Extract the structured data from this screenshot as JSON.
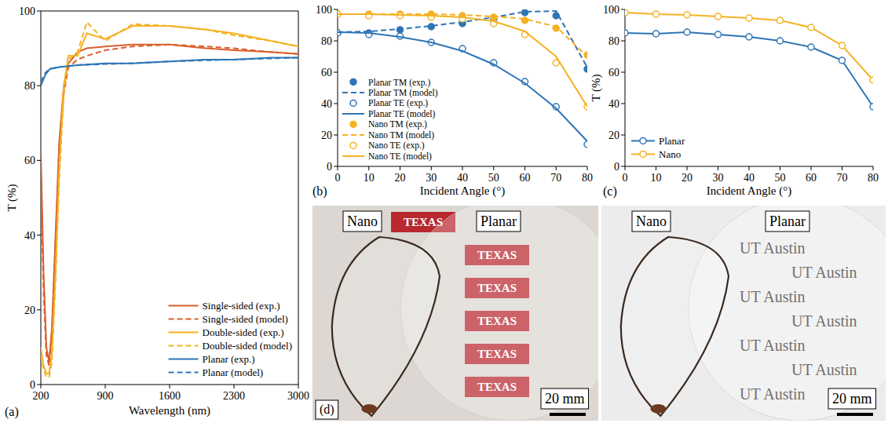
{
  "chart_data": [
    {
      "type": "line",
      "panel_label": "(a)",
      "x_label": "Wavelength (nm)",
      "y_label": "T (%)",
      "xlim": [
        200,
        3000
      ],
      "xticks": [
        200,
        900,
        1600,
        2300,
        3000
      ],
      "ylim": [
        0,
        100
      ],
      "yticks": [
        0,
        20,
        40,
        60,
        80,
        100
      ],
      "legend": "lower right",
      "series": [
        {
          "name": "Single-sided (exp.)",
          "color": "#d95f2b",
          "line_style": "solid",
          "x": [
            200,
            230,
            260,
            290,
            320,
            360,
            400,
            450,
            500,
            600,
            700,
            900,
            1200,
            1600,
            2000,
            2300,
            2700,
            3000
          ],
          "values": [
            62,
            30,
            10,
            6,
            15,
            40,
            65,
            80,
            86,
            89,
            90,
            90.5,
            91,
            91,
            90,
            89.5,
            89,
            88.5
          ]
        },
        {
          "name": "Single-sided (model)",
          "color": "#d95f2b",
          "line_style": "dashed",
          "x": [
            200,
            230,
            260,
            290,
            320,
            360,
            400,
            450,
            500,
            600,
            700,
            900,
            1200,
            1600,
            2000,
            2300,
            2700,
            3000
          ],
          "values": [
            55,
            25,
            8,
            5,
            12,
            38,
            62,
            78,
            85,
            87,
            88,
            89.5,
            90.5,
            91,
            90.5,
            90,
            89,
            88.5
          ]
        },
        {
          "name": "Double-sided (exp.)",
          "color": "#f4b223",
          "line_style": "solid",
          "x": [
            200,
            230,
            260,
            290,
            320,
            360,
            400,
            450,
            500,
            600,
            700,
            900,
            1200,
            1600,
            2000,
            2300,
            2700,
            3000
          ],
          "values": [
            10,
            5,
            3,
            3,
            8,
            30,
            58,
            80,
            88,
            88,
            94,
            92.5,
            96,
            96,
            95,
            94,
            92,
            90.5
          ]
        },
        {
          "name": "Double-sided (model)",
          "color": "#f4b223",
          "line_style": "dashed",
          "x": [
            200,
            230,
            260,
            290,
            320,
            360,
            400,
            450,
            500,
            600,
            700,
            900,
            1200,
            1600,
            2000,
            2300,
            2700,
            3000
          ],
          "values": [
            8,
            4,
            2,
            2,
            6,
            28,
            55,
            78,
            87,
            89,
            97,
            92,
            96.5,
            96,
            95,
            93.5,
            92,
            90.5
          ]
        },
        {
          "name": "Planar (exp.)",
          "color": "#2e75b6",
          "line_style": "solid",
          "x": [
            200,
            250,
            300,
            400,
            600,
            900,
            1200,
            1600,
            2000,
            2300,
            2700,
            3000
          ],
          "values": [
            80,
            83,
            84.5,
            85,
            85.5,
            86,
            86,
            86.5,
            87,
            87,
            87.5,
            87.5
          ]
        },
        {
          "name": "Planar (model)",
          "color": "#2e75b6",
          "line_style": "dashed",
          "x": [
            200,
            250,
            300,
            400,
            600,
            900,
            1200,
            1600,
            2000,
            2300,
            2700,
            3000
          ],
          "values": [
            81,
            83.5,
            84.5,
            85,
            85.5,
            85.8,
            86,
            86.5,
            86.8,
            87,
            87.3,
            87.5
          ]
        }
      ]
    },
    {
      "type": "line",
      "panel_label": "(b)",
      "x_label": "Incident Angle (°)",
      "x": [
        0,
        10,
        20,
        30,
        40,
        50,
        60,
        70,
        80
      ],
      "xlim": [
        0,
        80
      ],
      "xticks": [
        0,
        10,
        20,
        30,
        40,
        50,
        60,
        70,
        80
      ],
      "ylim": [
        0,
        100
      ],
      "yticks": [
        0,
        20,
        40,
        60,
        80,
        100
      ],
      "legend": "lower left",
      "series": [
        {
          "name": "Planar TM (exp.)",
          "color": "#2e75b6",
          "type": "scatter",
          "marker": "circle",
          "values": [
            85,
            85,
            87,
            89,
            91,
            94,
            98,
            96,
            62
          ]
        },
        {
          "name": "Planar TM (model)",
          "color": "#2e75b6",
          "type": "line",
          "line_style": "dashed",
          "values": [
            85.5,
            86,
            87.5,
            89.5,
            92,
            95,
            98.5,
            99,
            63
          ]
        },
        {
          "name": "Planar TE (exp.)",
          "color": "#2e75b6",
          "type": "scatter",
          "marker": "open-circle",
          "values": [
            85,
            84,
            83,
            79,
            75,
            66,
            54,
            38,
            14
          ]
        },
        {
          "name": "Planar TE (model)",
          "color": "#2e75b6",
          "type": "line",
          "line_style": "solid",
          "values": [
            85.5,
            85,
            82.5,
            79,
            73.5,
            65,
            53,
            37,
            16
          ]
        },
        {
          "name": "Nano TM (exp.)",
          "color": "#f4b223",
          "type": "scatter",
          "marker": "circle",
          "values": [
            97,
            97,
            97,
            97,
            96,
            95,
            93,
            88,
            71
          ]
        },
        {
          "name": "Nano TM (model)",
          "color": "#f4b223",
          "type": "line",
          "line_style": "dashed",
          "values": [
            97,
            97,
            97,
            97,
            96.5,
            95.5,
            94,
            89,
            70
          ]
        },
        {
          "name": "Nano TE (exp.)",
          "color": "#f4b223",
          "type": "scatter",
          "marker": "open-circle",
          "values": [
            97,
            96,
            96,
            95,
            94,
            91,
            84,
            66,
            38
          ]
        },
        {
          "name": "Nano TE (model)",
          "color": "#f4b223",
          "type": "line",
          "line_style": "solid",
          "values": [
            97,
            97,
            96.5,
            96,
            95,
            92.5,
            86,
            70,
            38
          ]
        }
      ]
    },
    {
      "type": "line",
      "panel_label": "(c)",
      "x_label": "Incident Angle (°)",
      "y_label": "T (%)",
      "x": [
        0,
        10,
        20,
        30,
        40,
        50,
        60,
        70,
        80
      ],
      "xlim": [
        0,
        80
      ],
      "xticks": [
        0,
        10,
        20,
        30,
        40,
        50,
        60,
        70,
        80
      ],
      "ylim": [
        0,
        100
      ],
      "yticks": [
        0,
        20,
        40,
        60,
        80,
        100
      ],
      "legend": "lower left",
      "series": [
        {
          "name": "Planar",
          "color": "#2e75b6",
          "marker": "open-circle",
          "line_style": "solid",
          "values": [
            85,
            84.5,
            85.5,
            84,
            82.5,
            80,
            76,
            67.5,
            38
          ]
        },
        {
          "name": "Nano",
          "color": "#f4b223",
          "marker": "open-circle",
          "line_style": "solid",
          "values": [
            98,
            97,
            96.5,
            95.5,
            94.5,
            93,
            88.5,
            77,
            55
          ]
        }
      ]
    }
  ],
  "photo_panel": {
    "label": "(d)",
    "photos": [
      {
        "background_text": "TEXAS",
        "labels": [
          "Nano",
          "Planar"
        ],
        "scale_bar": "20 mm"
      },
      {
        "background_text": "UT Austin",
        "labels": [
          "Nano",
          "Planar"
        ],
        "scale_bar": "20 mm"
      }
    ]
  }
}
